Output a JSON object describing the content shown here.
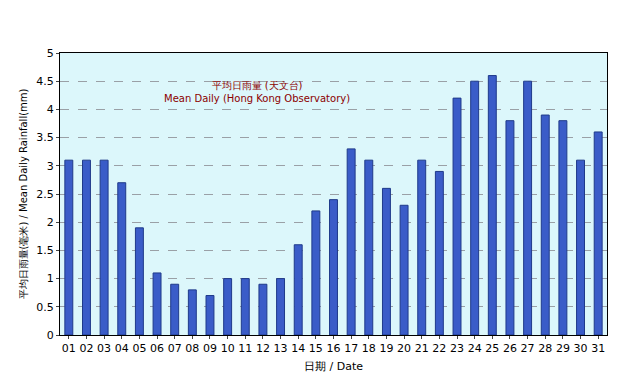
{
  "chart_data": {
    "type": "bar",
    "annotations": [
      "平均日雨量 (天文台)",
      "Mean Daily (Hong Kong Observatory)"
    ],
    "x_label": "日期 / Date",
    "y_label": "平均日雨量(毫米) / Mean Daily Rainfall(mm)",
    "categories": [
      "01",
      "02",
      "03",
      "04",
      "05",
      "06",
      "07",
      "08",
      "09",
      "10",
      "11",
      "12",
      "13",
      "14",
      "15",
      "16",
      "17",
      "18",
      "19",
      "20",
      "21",
      "22",
      "23",
      "24",
      "25",
      "26",
      "27",
      "28",
      "29",
      "30",
      "31"
    ],
    "values": [
      3.1,
      3.1,
      3.1,
      2.7,
      1.9,
      1.1,
      0.9,
      0.8,
      0.7,
      1.0,
      1.0,
      0.9,
      1.0,
      1.6,
      2.2,
      2.4,
      3.3,
      3.1,
      2.6,
      2.3,
      3.1,
      2.9,
      4.2,
      4.5,
      4.6,
      3.8,
      4.5,
      3.9,
      3.8,
      3.1,
      3.6
    ],
    "color": "#3a5cc8",
    "ylim": [
      0,
      5
    ],
    "yticks": [
      0,
      0.5,
      1,
      1.5,
      2,
      2.5,
      3,
      3.5,
      4,
      4.5,
      5
    ],
    "grid": true
  }
}
